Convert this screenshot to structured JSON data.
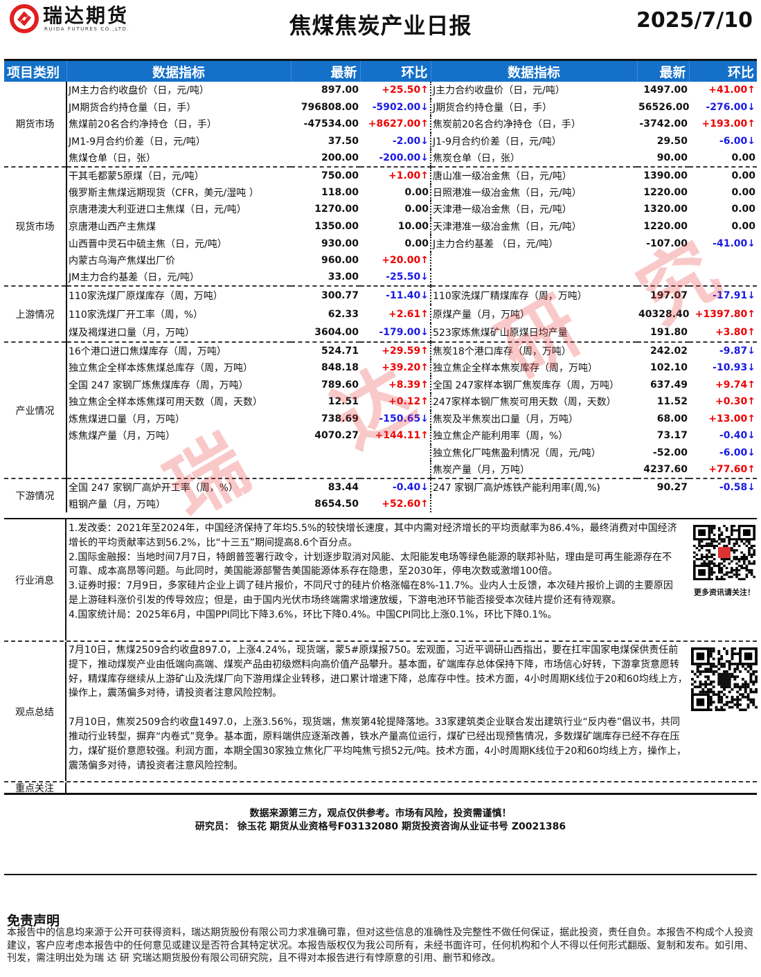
{
  "header": {
    "logo_cn": "瑞达期货",
    "logo_en": "RUIDA FUTURES CO.,LTD.",
    "title": "焦煤焦炭产业日报",
    "date": "2025/7/10"
  },
  "colors": {
    "header_blue": "#1470c8",
    "up": "#e00000",
    "down": "#1a1ae6"
  },
  "table": {
    "columns": [
      "项目类别",
      "数据指标",
      "最新",
      "环比",
      "数据指标",
      "最新",
      "环比"
    ],
    "sections": [
      {
        "category": "期货市场",
        "rows": [
          [
            "JM主力合约收盘价（日，元/吨）",
            "897.00",
            "+25.50↑",
            "J主力合约收盘价（日，元/吨）",
            "1497.00",
            "+41.00↑"
          ],
          [
            "JM期货合约持仓量（日，手）",
            "796808.00",
            "-5902.00↓",
            "J期货合约持仓量（日，手）",
            "56526.00",
            "-276.00↓"
          ],
          [
            "焦煤前20名合约净持仓（日，手）",
            "-47534.00",
            "+8627.00↑",
            "焦炭前20名合约净持仓（日，手）",
            "-3742.00",
            "+193.00↑"
          ],
          [
            "JM1-9月合约价差（日，元/吨）",
            "37.50",
            "-2.00↓",
            "J1-9月合约价差（日，元/吨）",
            "29.50",
            "-6.00↓"
          ],
          [
            "焦煤仓单（日，张）",
            "200.00",
            "-200.00↓",
            "焦炭仓单（日，张）",
            "90.00",
            "0.00"
          ]
        ]
      },
      {
        "category": "现货市场",
        "rows": [
          [
            "干其毛都蒙5原煤（日，元/吨）",
            "750.00",
            "+1.00↑",
            "唐山准一级冶金焦（日，元/吨）",
            "1390.00",
            "0.00"
          ],
          [
            "俄罗斯主焦煤远期现货（CFR，美元/湿吨 ）",
            "118.00",
            "0.00",
            "日照港准一级冶金焦（日，元/吨）",
            "1220.00",
            "0.00"
          ],
          [
            "京唐港澳大利亚进口主焦煤（日，元/吨）",
            "1270.00",
            "0.00",
            "天津港一级冶金焦（日，元/吨）",
            "1320.00",
            "0.00"
          ],
          [
            "京唐港山西产主焦煤",
            "1350.00",
            "10.00",
            "天津港准一级冶金焦（日，元/吨）",
            "1220.00",
            "0.00"
          ],
          [
            "山西晋中灵石中硫主焦（日，元/吨）",
            "930.00",
            "0.00",
            "J主力合约基差 （日，元/吨）",
            "-107.00",
            "-41.00↓"
          ],
          [
            "内蒙古乌海产焦煤出厂价",
            "960.00",
            "+20.00↑",
            "",
            "",
            ""
          ],
          [
            "JM主力合约基差（日，元/吨）",
            "33.00",
            "-25.50↓",
            "",
            "",
            ""
          ]
        ]
      },
      {
        "category": "上游情况",
        "rows": [
          [
            "110家洗煤厂原煤库存（周，万吨）",
            "300.77",
            "-11.40↓",
            "110家洗煤厂精煤库存（周，万吨）",
            "197.07",
            "-17.91↓"
          ],
          [
            "110家洗煤厂开工率（周，%）",
            "62.33",
            "+2.61↑",
            "原煤产量（月，万吨）",
            "40328.40",
            "+1397.80↑"
          ],
          [
            "煤及褐煤进口量（月，万吨）",
            "3604.00",
            "-179.00↓",
            "523家炼焦煤矿山原煤日均产量",
            "191.80",
            "+3.80↑"
          ]
        ]
      },
      {
        "category": "产业情况",
        "rows": [
          [
            "16个港口进口焦煤库存（周，万吨）",
            "524.71",
            "+29.59↑",
            "焦炭18个港口库存（周，万吨）",
            "242.02",
            "-9.87↓"
          ],
          [
            "独立焦企全样本炼焦煤总库存（周，万吨）",
            "848.18",
            "+39.20↑",
            "独立焦企全样本焦炭库存（周，万吨）",
            "102.10",
            "-10.93↓"
          ],
          [
            "全国 247 家钢厂炼焦煤库存（周，万吨）",
            "789.60",
            "+8.39↑",
            "全国 247家样本钢厂焦炭库存（周，万吨）",
            "637.49",
            "+9.74↑"
          ],
          [
            "独立焦企全样本炼焦煤可用天数（周，天数）",
            "12.51",
            "+0.12↑",
            " 247家样本钢厂焦炭可用天数（周，天数）",
            "11.52",
            "+0.30↑"
          ],
          [
            "炼焦煤进口量（月，万吨）",
            "738.69",
            "-150.65↓",
            "焦炭及半焦炭出口量（月，万吨）",
            "68.00",
            "+13.00↑"
          ],
          [
            "炼焦煤产量（月，万吨）",
            "4070.27",
            "+144.11↑",
            "独立焦企产能利用率（周，%）",
            "73.17",
            "-0.40↓"
          ],
          [
            "",
            "",
            "",
            "独立焦化厂吨焦盈利情况（周，元/吨）",
            "-52.00",
            "-6.00↓"
          ],
          [
            "",
            "",
            "",
            "焦炭产量（月，万吨）",
            "4237.60",
            "+77.60↑"
          ]
        ]
      },
      {
        "category": "下游情况",
        "rows": [
          [
            "全国 247 家钢厂高炉开工率（周，%）",
            "83.44",
            "-0.40↓",
            "247 家钢厂高炉炼铁产能利用率(周,%)",
            "90.27",
            "-0.58↓"
          ],
          [
            "粗钢产量（月，万吨）",
            "8654.50",
            "+52.60↑",
            "",
            "",
            ""
          ]
        ]
      }
    ]
  },
  "news": {
    "label": "行业消息",
    "items": [
      "1.发改委：2021年至2024年，中国经济保持了年均5.5%的较快增长速度，其中内需对经济增长的平均贡献率为86.4%，最终消费对中国经济增长的平均贡献率达到56.2%，比“十三五”期间提高8.6个百分点。",
      "2.国际金融报：当地时间7月7日，特朗普签署行政令，计划逐步取消对风能、太阳能发电场等绿色能源的联邦补贴，理由是可再生能源存在不可靠、成本高昂等问题。与此同时，美国能源部警告美国能源体系存在隐患，至2030年，停电次数或激增100倍。",
      "3.证券时报：7月9日，多家硅片企业上调了硅片报价，不同尺寸的硅片价格涨幅在8%-11.7%。业内人士反馈，本次硅片报价上调的主要原因是上游硅料涨价引发的传导效应；但是，由于国内光伏市场终端需求增速放缓，下游电池环节能否接受本次硅片提价还有待观察。",
      "4.国家统计局：2025年6月，中国PPI同比下降3.6%，环比下降0.4%。中国CPI同比上涨0.1%，环比下降0.1%。"
    ],
    "qr_caption": "更多资讯请关注！"
  },
  "views": {
    "label": "观点总结",
    "items": [
      "7月10日，焦煤2509合约收盘897.0，上涨4.24%，现货端，蒙5#原煤报750。宏观面，习近平调研山西指出，要在扛牢国家电煤保供责任前提下，推动煤炭产业由低端向高端、煤炭产品由初级燃料向高价值产品攀升。基本面，矿端库存总体保持下降，市场信心好转，下游拿货意愿转好，精煤库存继续从上游矿山及洗煤厂向下游用煤企业转移，进口累计增速下降，总库存中性。技术方面，4小时周期K线位于20和60均线上方，操作上，震荡偏多对待，请投资者注意风险控制。",
      "7月10日，焦炭2509合约收盘1497.0，上涨3.56%，现货端，焦炭第4轮提降落地。33家建筑类企业联合发出建筑行业“反内卷”倡议书，共同推动行业转型，摒弃“内卷式”竞争。基本面，原料端供应逐渐改善，铁水产量高位运行，煤矿已经出现预售情况，多数煤矿端库存已经不存在压力，煤矿挺价意愿较强。利润方面，本期全国30家独立焦化厂平均吨焦亏损52元/吨。技术方面，4小时周期K线位于20和60均线上方，操作上，震荡偏多对待，请投资者注意风险控制。"
    ]
  },
  "focus": {
    "label": "重点关注"
  },
  "disclaimer_line": "数据来源第三方，观点仅供参考。市场有风险，投资需谨慎！",
  "researcher_line": "研究员：  徐玉花 期货从业资格号F03132080 期货投资咨询从业证书号 Z0021386",
  "legal": {
    "title": "免责声明",
    "body": "本报告中的信息均来源于公开可获得资料，瑞达期货股份有限公司力求准确可靠，但对这些信息的准确性及完整性不做任何保证，据此投资，责任自负。本报告不构成个人投资建议，客户应考虑本报告中的任何意见或建议是否符合其特定状况。本报告版权仅为我公司所有，未经书面许可，任何机构和个人不得以任何形式翻版、复制和发布。如引用、刊发，需注明出处为瑞 达 研 究瑞达期货股份有限公司研究院，且不得对本报告进行有悖原意的引用、删节和修改。"
  },
  "watermark": [
    "瑞",
    "达",
    "研",
    "究"
  ]
}
